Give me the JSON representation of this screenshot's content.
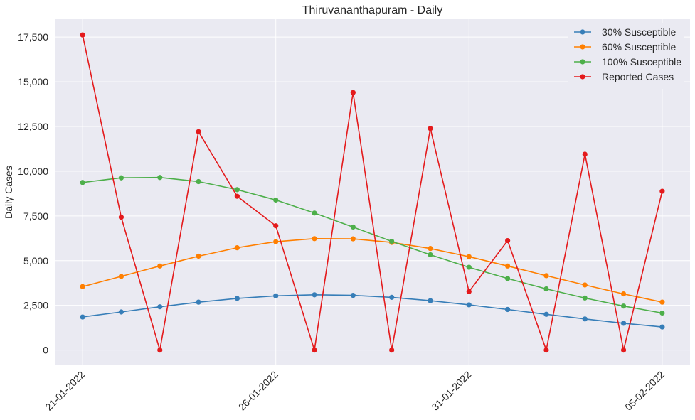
{
  "chart_data": {
    "type": "line",
    "title": "Thiruvananthapuram - Daily",
    "xlabel": "",
    "ylabel": "Daily Cases",
    "x": [
      "21-01-2022",
      "22-01-2022",
      "23-01-2022",
      "24-01-2022",
      "25-01-2022",
      "26-01-2022",
      "27-01-2022",
      "28-01-2022",
      "29-01-2022",
      "30-01-2022",
      "31-01-2022",
      "01-02-2022",
      "02-02-2022",
      "03-02-2022",
      "04-02-2022",
      "05-02-2022"
    ],
    "xticks": [
      "21-01-2022",
      "26-01-2022",
      "31-01-2022",
      "05-02-2022"
    ],
    "yticks": [
      0,
      2500,
      5000,
      7500,
      10000,
      12500,
      15000,
      17500
    ],
    "ytick_labels": [
      "0",
      "2,500",
      "5,000",
      "7,500",
      "10,000",
      "12,500",
      "15,000",
      "17,500"
    ],
    "ylim": [
      -850,
      18500
    ],
    "grid": true,
    "legend_position": "top-right",
    "series": [
      {
        "name": "30% Susceptible",
        "color": "#377eb8",
        "values": [
          1850,
          2130,
          2420,
          2680,
          2890,
          3030,
          3090,
          3060,
          2950,
          2760,
          2530,
          2270,
          2000,
          1740,
          1500,
          1290
        ]
      },
      {
        "name": "60% Susceptible",
        "color": "#ff7f00",
        "values": [
          3550,
          4120,
          4700,
          5250,
          5720,
          6060,
          6230,
          6220,
          6020,
          5680,
          5220,
          4700,
          4160,
          3640,
          3140,
          2680
        ]
      },
      {
        "name": "100% Susceptible",
        "color": "#4daf4a",
        "values": [
          9370,
          9630,
          9650,
          9420,
          8970,
          8390,
          7660,
          6880,
          6080,
          5330,
          4630,
          4000,
          3420,
          2910,
          2460,
          2070
        ]
      },
      {
        "name": "Reported Cases",
        "color": "#e41a1c",
        "values": [
          17620,
          7430,
          0,
          12210,
          8600,
          6950,
          0,
          14400,
          0,
          12390,
          3270,
          6120,
          0,
          10950,
          0,
          8880
        ]
      }
    ]
  }
}
